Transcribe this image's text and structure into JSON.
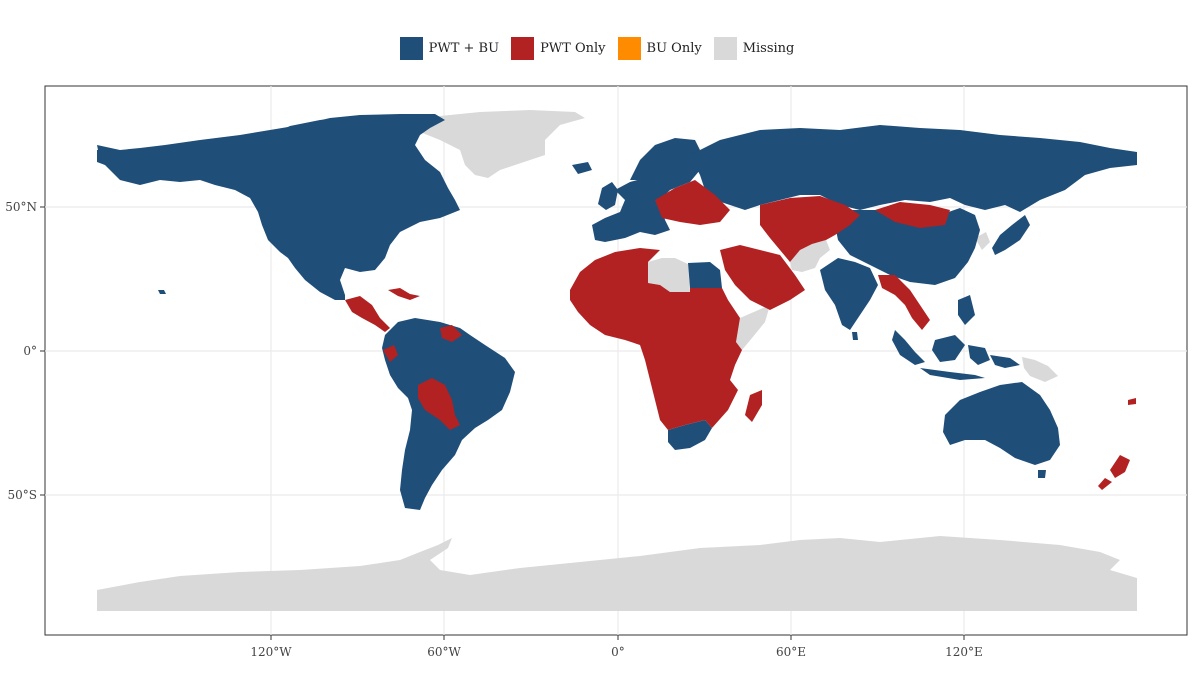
{
  "legend": [
    {
      "label": "PWT + BU",
      "color": "#1f4e79"
    },
    {
      "label": "PWT Only",
      "color": "#b22222"
    },
    {
      "label": "BU Only",
      "color": "#ff8c00"
    },
    {
      "label": "Missing",
      "color": "#d9d9d9"
    }
  ],
  "axes": {
    "x_ticks": [
      "120°W",
      "60°W",
      "0°",
      "60°E",
      "120°E"
    ],
    "y_ticks": [
      "50°N",
      "0°",
      "50°S"
    ],
    "x_tick_lon": [
      -120,
      -60,
      0,
      60,
      120
    ],
    "y_tick_lat": [
      50,
      0,
      -50
    ],
    "lon_range": [
      -180,
      180
    ],
    "lat_range": [
      -90,
      83
    ]
  },
  "gridlines": true
}
